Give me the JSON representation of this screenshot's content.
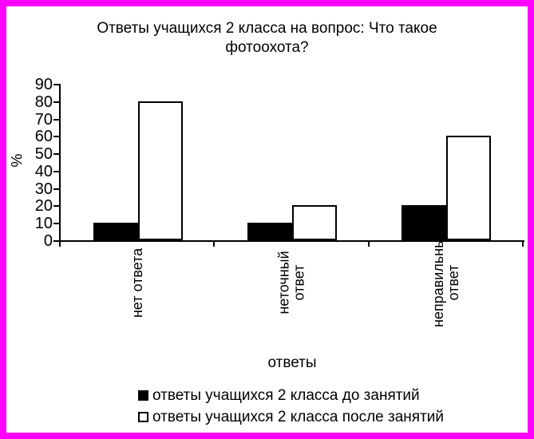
{
  "frame": {
    "border_color": "#ff00ff",
    "background_color": "#ffffff"
  },
  "title": "Ответы учащихся 2 класса на вопрос: Что такое фотоохота?",
  "chart_data": {
    "type": "bar",
    "title": "Ответы учащихся 2 класса на вопрос: Что такое фотоохота?",
    "categories": [
      "нет ответа",
      "неточный ответ",
      "неправильны ответ"
    ],
    "category_label_lines": [
      [
        "нет ответа"
      ],
      [
        "неточный",
        "ответ"
      ],
      [
        "неправильны",
        "ответ"
      ]
    ],
    "series": [
      {
        "name": "ответы учащихся 2 класса до занятий",
        "values": [
          10,
          10,
          20
        ],
        "fill": "#000000"
      },
      {
        "name": "ответы учащихся 2 класса после занятий",
        "values": [
          80,
          20,
          60
        ],
        "fill": "#ffffff"
      }
    ],
    "xlabel": "ответы",
    "ylabel": "%",
    "ylim": [
      0,
      90
    ],
    "yticks": [
      0,
      10,
      20,
      30,
      40,
      50,
      60,
      70,
      80,
      90
    ],
    "grid": false,
    "legend_position": "bottom",
    "bar_edge_color": "#000000",
    "category_labels_rotation_deg": -90
  }
}
